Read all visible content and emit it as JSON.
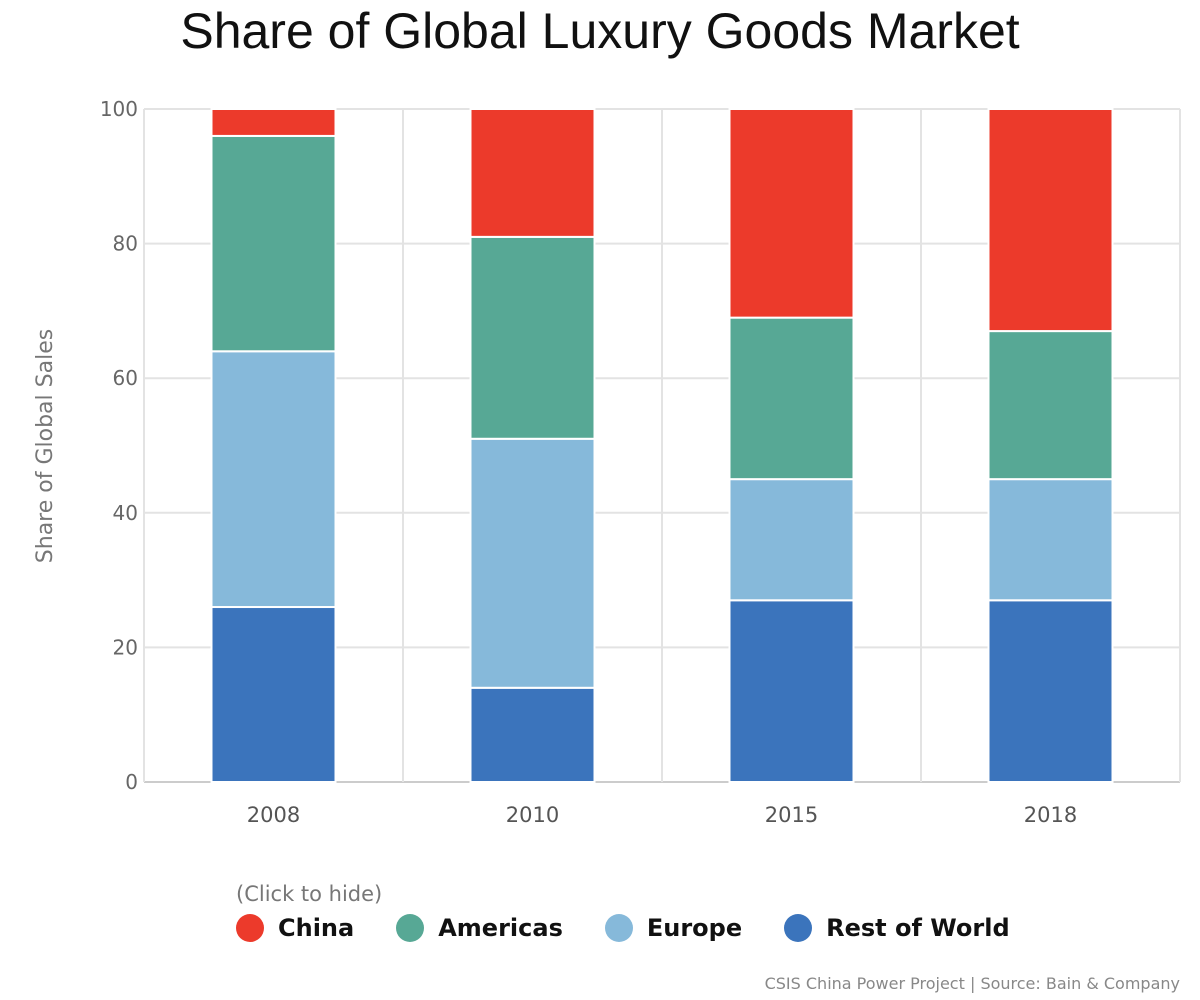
{
  "chart_data": {
    "type": "bar",
    "stacked": true,
    "title": "Share of Global Luxury Goods Market",
    "xlabel": "",
    "ylabel": "Share of Global Sales",
    "ylim": [
      0,
      100
    ],
    "yticks": [
      0,
      20,
      40,
      60,
      80,
      100
    ],
    "categories": [
      "2008",
      "2010",
      "2015",
      "2018"
    ],
    "grid": true,
    "legend_position": "bottom-left",
    "legend_hint": "(Click to hide)",
    "series": [
      {
        "name": "Rest of World",
        "color": "#3b74bc",
        "values": [
          26,
          14,
          27,
          27
        ]
      },
      {
        "name": "Europe",
        "color": "#86b9da",
        "values": [
          38,
          37,
          18,
          18
        ]
      },
      {
        "name": "Americas",
        "color": "#57a895",
        "values": [
          32,
          30,
          24,
          22
        ]
      },
      {
        "name": "China",
        "color": "#ec3a2b",
        "values": [
          4,
          19,
          31,
          33
        ]
      }
    ],
    "legend_order": [
      "China",
      "Americas",
      "Europe",
      "Rest of World"
    ],
    "source": "CSIS China Power Project | Source: Bain & Company"
  }
}
